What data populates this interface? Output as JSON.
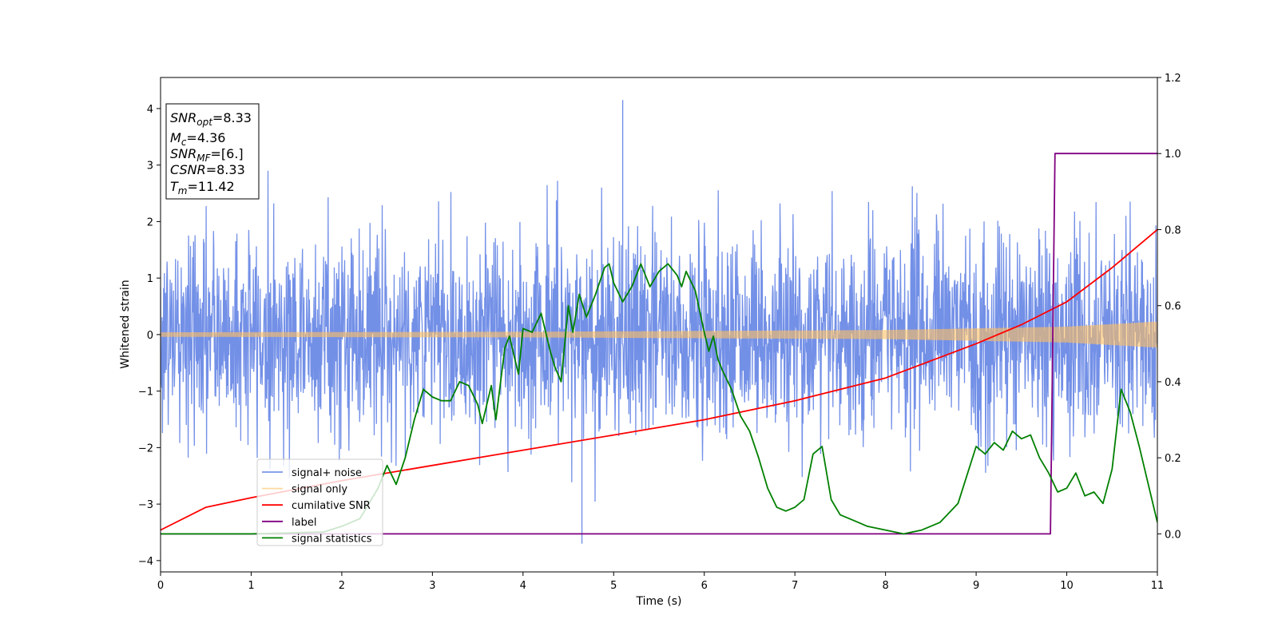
{
  "chart_data": {
    "type": "line",
    "xlabel": "Time (s)",
    "ylabel": "Whitened strain",
    "xlim": [
      0,
      11
    ],
    "ylim_left": [
      -4.2,
      4.55
    ],
    "ylim_right": [
      -0.1,
      1.2
    ],
    "x_ticks": [
      "0",
      "1",
      "2",
      "3",
      "4",
      "5",
      "6",
      "7",
      "8",
      "9",
      "10",
      "11"
    ],
    "y_left_ticks": [
      "4",
      "3",
      "2",
      "1",
      "0",
      "−1",
      "−2",
      "−3",
      "−4"
    ],
    "y_left_tick_values": [
      4,
      3,
      2,
      1,
      0,
      -1,
      -2,
      -3,
      -4
    ],
    "y_right_ticks": [
      "1.2",
      "1.0",
      "0.8",
      "0.6",
      "0.4",
      "0.2",
      "0.0"
    ],
    "y_right_tick_values": [
      1.2,
      1.0,
      0.8,
      0.6,
      0.4,
      0.2,
      0.0
    ],
    "grid": false,
    "legend_position": "lower-left",
    "legend": [
      {
        "label": "signal+ noise",
        "color": "#6b8ae6"
      },
      {
        "label": "signal only",
        "color": "#ffbf60"
      },
      {
        "label": "cumilative SNR",
        "color": "#ff0000"
      },
      {
        "label": "label",
        "color": "#800080"
      },
      {
        "label": "signal statistics",
        "color": "#008000"
      }
    ],
    "info_box": {
      "snr_opt_base": "SNR",
      "snr_opt_sub": "opt",
      "snr_opt_value": "=8.33",
      "mc_base": "M",
      "mc_sub": "c",
      "mc_value": "=4.36",
      "snr_mf_base": "SNR",
      "snr_mf_sub": "MF",
      "snr_mf_value": "=[6.]",
      "csnr_base": "CSNR",
      "csnr_value": "=8.33",
      "tm_base": "T",
      "tm_sub": "m",
      "tm_value": "=11.42"
    },
    "series": [
      {
        "name": "signal+ noise",
        "axis": "left",
        "color": "#6b8ae6",
        "noise_std": 0.9,
        "approx_extremes": {
          "max": 4.15,
          "min": -3.7
        }
      },
      {
        "name": "signal only",
        "axis": "left",
        "color": "#ffbf60",
        "envelope": {
          "x": [
            0,
            4,
            8,
            10,
            11
          ],
          "amplitude": [
            0.04,
            0.05,
            0.08,
            0.14,
            0.23
          ]
        }
      },
      {
        "name": "cumilative SNR",
        "axis": "right",
        "color": "#ff0000",
        "x": [
          0,
          0.5,
          1,
          2,
          3,
          4,
          5,
          6,
          7,
          8,
          9,
          9.5,
          10,
          10.5,
          11
        ],
        "y": [
          0.01,
          0.07,
          0.095,
          0.14,
          0.18,
          0.22,
          0.26,
          0.3,
          0.35,
          0.41,
          0.5,
          0.55,
          0.61,
          0.7,
          0.8
        ]
      },
      {
        "name": "label",
        "axis": "right",
        "color": "#800080",
        "x": [
          0,
          9.82,
          9.87,
          11
        ],
        "y": [
          0.0,
          0.0,
          1.0,
          1.0
        ]
      },
      {
        "name": "signal statistics",
        "axis": "right",
        "color": "#008000",
        "x": [
          0,
          1.0,
          1.8,
          2.0,
          2.2,
          2.4,
          2.5,
          2.6,
          2.7,
          2.8,
          2.9,
          3.0,
          3.1,
          3.2,
          3.3,
          3.4,
          3.5,
          3.55,
          3.65,
          3.7,
          3.8,
          3.85,
          3.95,
          4.0,
          4.1,
          4.2,
          4.3,
          4.35,
          4.42,
          4.5,
          4.55,
          4.62,
          4.7,
          4.8,
          4.9,
          4.95,
          5.0,
          5.1,
          5.2,
          5.3,
          5.4,
          5.5,
          5.6,
          5.7,
          5.75,
          5.8,
          5.9,
          6.0,
          6.05,
          6.1,
          6.15,
          6.2,
          6.3,
          6.4,
          6.5,
          6.6,
          6.7,
          6.8,
          6.9,
          7.0,
          7.1,
          7.2,
          7.3,
          7.4,
          7.5,
          7.6,
          7.7,
          7.8,
          8.0,
          8.2,
          8.4,
          8.6,
          8.8,
          9.0,
          9.1,
          9.2,
          9.3,
          9.4,
          9.5,
          9.6,
          9.7,
          9.8,
          9.9,
          10.0,
          10.1,
          10.2,
          10.3,
          10.4,
          10.5,
          10.6,
          10.7,
          10.8,
          11.0
        ],
        "y": [
          0.0,
          0.0,
          0.005,
          0.02,
          0.04,
          0.12,
          0.18,
          0.13,
          0.2,
          0.3,
          0.38,
          0.36,
          0.35,
          0.35,
          0.4,
          0.39,
          0.34,
          0.29,
          0.39,
          0.3,
          0.49,
          0.52,
          0.42,
          0.54,
          0.53,
          0.58,
          0.48,
          0.44,
          0.4,
          0.6,
          0.53,
          0.63,
          0.57,
          0.63,
          0.7,
          0.71,
          0.66,
          0.61,
          0.65,
          0.71,
          0.65,
          0.69,
          0.71,
          0.68,
          0.65,
          0.69,
          0.64,
          0.53,
          0.48,
          0.52,
          0.46,
          0.43,
          0.38,
          0.31,
          0.27,
          0.2,
          0.12,
          0.07,
          0.06,
          0.07,
          0.09,
          0.21,
          0.23,
          0.09,
          0.05,
          0.04,
          0.03,
          0.02,
          0.01,
          0.0,
          0.01,
          0.03,
          0.08,
          0.23,
          0.21,
          0.24,
          0.22,
          0.27,
          0.25,
          0.26,
          0.2,
          0.16,
          0.11,
          0.12,
          0.16,
          0.1,
          0.11,
          0.08,
          0.17,
          0.38,
          0.32,
          0.23,
          0.03
        ]
      }
    ]
  }
}
